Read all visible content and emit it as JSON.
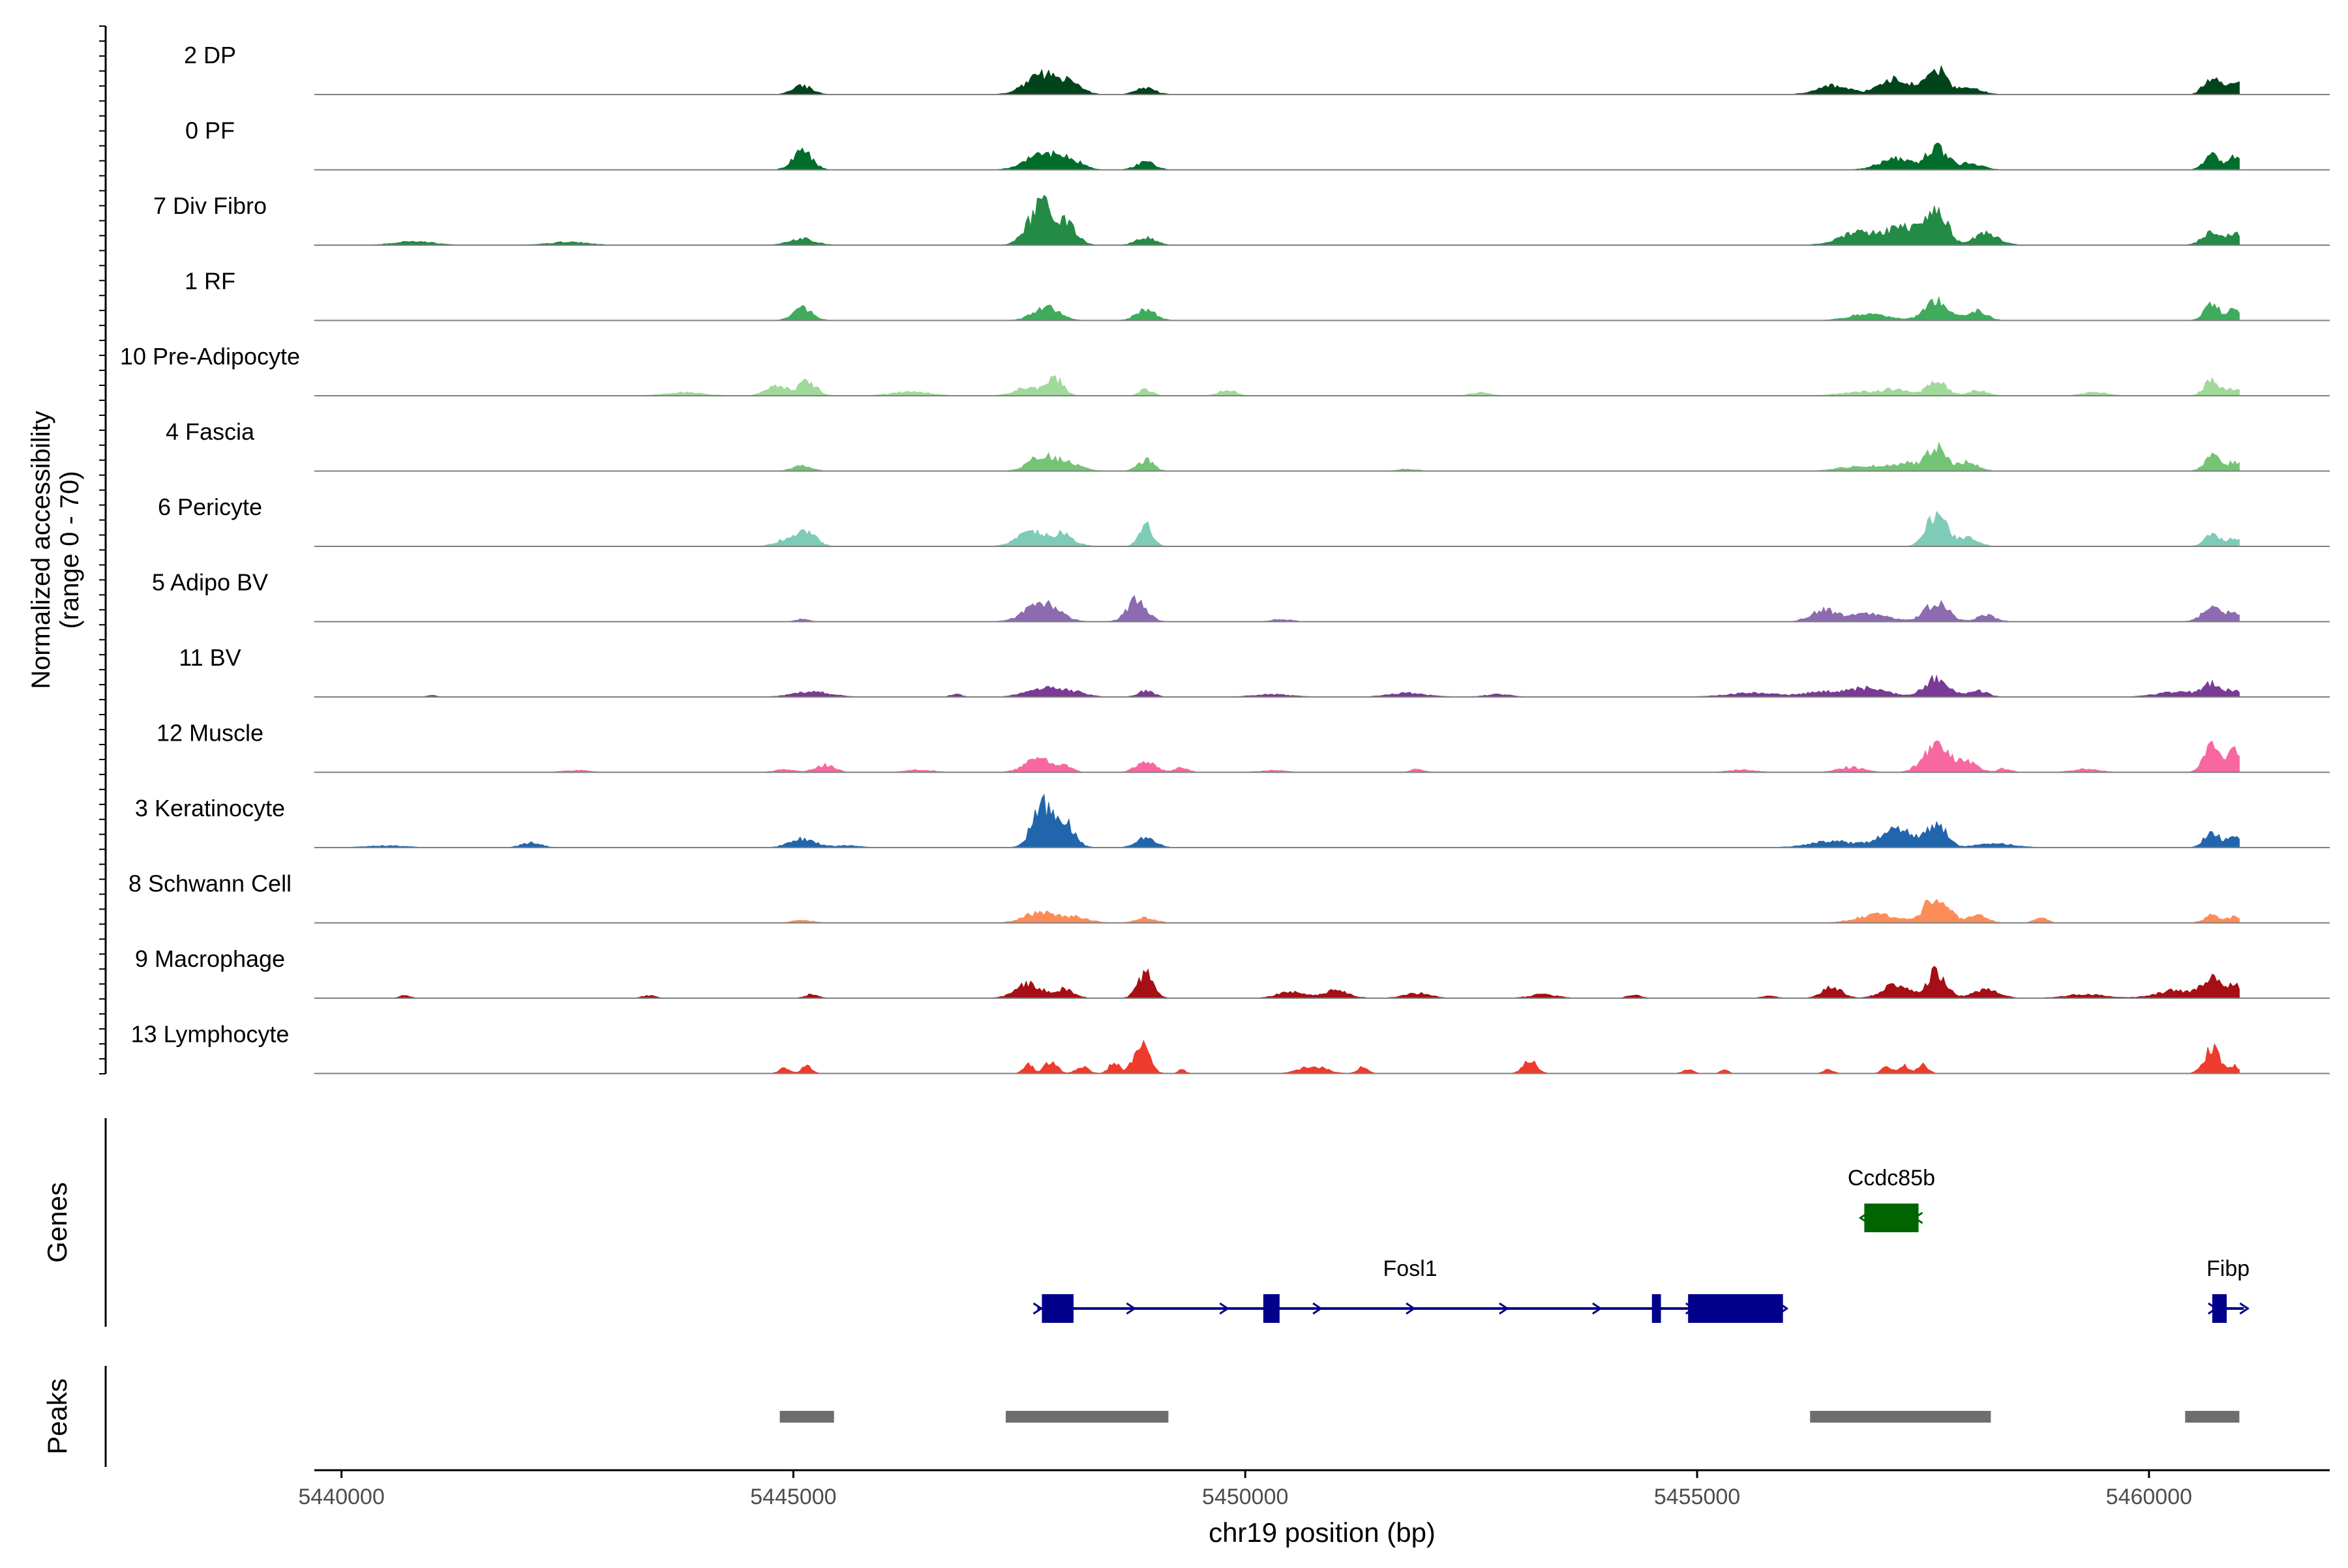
{
  "chart_data": {
    "type": "area",
    "title": "",
    "xlabel": "chr19 position (bp)",
    "ylabel_line1": "Normalized accessibility",
    "ylabel_line2": "(range 0 - 70)",
    "ylim": [
      0,
      70
    ],
    "xlim": [
      5439700,
      5462000
    ],
    "x_ticks": [
      5440000,
      5445000,
      5450000,
      5455000,
      5460000
    ],
    "x_tick_labels": [
      "5440000",
      "5445000",
      "5450000",
      "5455000",
      "5460000"
    ],
    "track_labels": {
      "genes": "Genes",
      "peaks": "Peaks"
    },
    "data_start": 5439700,
    "data_end": 5461000,
    "series": [
      {
        "name": "2 DP",
        "color": "#00441b",
        "peaks": [
          [
            5445100,
            150,
            14
          ],
          [
            5447750,
            250,
            30
          ],
          [
            5448050,
            200,
            15
          ],
          [
            5448900,
            150,
            10
          ],
          [
            5456500,
            250,
            14
          ],
          [
            5457200,
            250,
            24
          ],
          [
            5457650,
            150,
            40
          ],
          [
            5458000,
            200,
            10
          ],
          [
            5460700,
            120,
            30
          ],
          [
            5460950,
            100,
            22
          ]
        ]
      },
      {
        "name": "0 PF",
        "color": "#006d2c",
        "peaks": [
          [
            5445100,
            150,
            30
          ],
          [
            5447750,
            250,
            25
          ],
          [
            5448050,
            200,
            15
          ],
          [
            5448900,
            150,
            12
          ],
          [
            5457200,
            250,
            18
          ],
          [
            5457650,
            150,
            36
          ],
          [
            5458000,
            200,
            10
          ],
          [
            5460700,
            120,
            25
          ],
          [
            5460950,
            100,
            20
          ]
        ]
      },
      {
        "name": "7 Div Fibro",
        "color": "#238b45",
        "peaks": [
          [
            5440800,
            300,
            6
          ],
          [
            5442500,
            300,
            5
          ],
          [
            5445100,
            200,
            10
          ],
          [
            5447750,
            200,
            65
          ],
          [
            5448050,
            150,
            28
          ],
          [
            5448900,
            150,
            12
          ],
          [
            5456800,
            300,
            20
          ],
          [
            5457300,
            250,
            28
          ],
          [
            5457650,
            150,
            65
          ],
          [
            5458200,
            200,
            18
          ],
          [
            5460700,
            150,
            20
          ],
          [
            5460950,
            100,
            18
          ]
        ]
      },
      {
        "name": "1 RF",
        "color": "#41ab5d",
        "peaks": [
          [
            5445100,
            150,
            20
          ],
          [
            5447800,
            200,
            22
          ],
          [
            5448900,
            150,
            18
          ],
          [
            5456900,
            300,
            10
          ],
          [
            5457650,
            180,
            32
          ],
          [
            5458100,
            150,
            15
          ],
          [
            5460700,
            120,
            25
          ],
          [
            5460950,
            100,
            18
          ]
        ]
      },
      {
        "name": "10 Pre-Adipocyte",
        "color": "#a1d99b",
        "peaks": [
          [
            5443800,
            300,
            5
          ],
          [
            5444800,
            150,
            18
          ],
          [
            5445150,
            150,
            22
          ],
          [
            5446300,
            300,
            6
          ],
          [
            5447600,
            200,
            14
          ],
          [
            5447900,
            120,
            26
          ],
          [
            5448900,
            100,
            10
          ],
          [
            5449800,
            120,
            10
          ],
          [
            5452600,
            150,
            5
          ],
          [
            5456800,
            300,
            6
          ],
          [
            5457200,
            200,
            10
          ],
          [
            5457650,
            150,
            22
          ],
          [
            5458100,
            150,
            8
          ],
          [
            5459400,
            200,
            5
          ],
          [
            5460700,
            120,
            25
          ],
          [
            5460950,
            100,
            12
          ]
        ]
      },
      {
        "name": "4 Fascia",
        "color": "#74c476",
        "peaks": [
          [
            5445100,
            150,
            8
          ],
          [
            5447750,
            200,
            24
          ],
          [
            5448050,
            200,
            12
          ],
          [
            5448900,
            120,
            18
          ],
          [
            5451800,
            150,
            3
          ],
          [
            5456800,
            300,
            8
          ],
          [
            5457300,
            250,
            12
          ],
          [
            5457650,
            150,
            36
          ],
          [
            5458000,
            150,
            15
          ],
          [
            5460700,
            120,
            25
          ],
          [
            5460950,
            100,
            15
          ]
        ]
      },
      {
        "name": "6 Pericyte",
        "color": "#7ecbb8",
        "peaks": [
          [
            5444900,
            150,
            10
          ],
          [
            5445150,
            150,
            22
          ],
          [
            5447600,
            200,
            22
          ],
          [
            5447950,
            200,
            20
          ],
          [
            5448900,
            100,
            36
          ],
          [
            5457650,
            150,
            55
          ],
          [
            5458000,
            150,
            15
          ],
          [
            5460700,
            120,
            18
          ],
          [
            5460950,
            100,
            15
          ]
        ]
      },
      {
        "name": "5 Adipo BV",
        "color": "#8c6bb1",
        "peaks": [
          [
            5445100,
            100,
            4
          ],
          [
            5447750,
            250,
            30
          ],
          [
            5448800,
            150,
            34
          ],
          [
            5450400,
            150,
            4
          ],
          [
            5456400,
            200,
            18
          ],
          [
            5456900,
            300,
            12
          ],
          [
            5457650,
            180,
            30
          ],
          [
            5458200,
            150,
            10
          ],
          [
            5460700,
            150,
            22
          ],
          [
            5460950,
            100,
            15
          ]
        ]
      },
      {
        "name": "11 BV",
        "color": "#7a3a96",
        "peaks": [
          [
            5441000,
            80,
            3
          ],
          [
            5445200,
            300,
            8
          ],
          [
            5446800,
            80,
            5
          ],
          [
            5447750,
            250,
            15
          ],
          [
            5448100,
            200,
            8
          ],
          [
            5448900,
            120,
            10
          ],
          [
            5450300,
            300,
            4
          ],
          [
            5451800,
            300,
            6
          ],
          [
            5452800,
            200,
            4
          ],
          [
            5455600,
            400,
            6
          ],
          [
            5456400,
            300,
            8
          ],
          [
            5456900,
            300,
            14
          ],
          [
            5457650,
            180,
            30
          ],
          [
            5458100,
            150,
            10
          ],
          [
            5460300,
            300,
            8
          ],
          [
            5460700,
            150,
            20
          ],
          [
            5460950,
            100,
            10
          ]
        ]
      },
      {
        "name": "12 Muscle",
        "color": "#f768a1",
        "peaks": [
          [
            5442600,
            200,
            3
          ],
          [
            5444900,
            150,
            4
          ],
          [
            5445350,
            150,
            12
          ],
          [
            5446400,
            200,
            4
          ],
          [
            5447700,
            200,
            22
          ],
          [
            5448000,
            120,
            10
          ],
          [
            5448900,
            150,
            18
          ],
          [
            5449300,
            100,
            8
          ],
          [
            5450300,
            200,
            3
          ],
          [
            5451900,
            100,
            5
          ],
          [
            5455500,
            200,
            4
          ],
          [
            5456700,
            200,
            8
          ],
          [
            5457650,
            200,
            42
          ],
          [
            5458000,
            150,
            16
          ],
          [
            5458400,
            100,
            6
          ],
          [
            5459300,
            200,
            5
          ],
          [
            5460700,
            120,
            45
          ],
          [
            5460950,
            100,
            40
          ]
        ]
      },
      {
        "name": "3 Keratinocyte",
        "color": "#2166ac",
        "peaks": [
          [
            5440500,
            300,
            3
          ],
          [
            5442100,
            150,
            8
          ],
          [
            5445100,
            200,
            14
          ],
          [
            5445600,
            200,
            3
          ],
          [
            5447750,
            150,
            68
          ],
          [
            5448000,
            150,
            40
          ],
          [
            5448900,
            150,
            15
          ],
          [
            5456500,
            350,
            10
          ],
          [
            5457200,
            250,
            32
          ],
          [
            5457650,
            150,
            38
          ],
          [
            5458300,
            300,
            6
          ],
          [
            5460700,
            120,
            25
          ],
          [
            5460950,
            100,
            20
          ]
        ]
      },
      {
        "name": "8 Schwann Cell",
        "color": "#fc8d59",
        "peaks": [
          [
            5445100,
            150,
            5
          ],
          [
            5447750,
            250,
            18
          ],
          [
            5448150,
            200,
            8
          ],
          [
            5448900,
            150,
            8
          ],
          [
            5457000,
            300,
            14
          ],
          [
            5457650,
            180,
            45
          ],
          [
            5458100,
            150,
            12
          ],
          [
            5458800,
            100,
            8
          ],
          [
            5460700,
            120,
            12
          ],
          [
            5460950,
            100,
            10
          ]
        ]
      },
      {
        "name": "9 Macrophage",
        "color": "#a50f15",
        "peaks": [
          [
            5440700,
            80,
            4
          ],
          [
            5443400,
            100,
            4
          ],
          [
            5445200,
            100,
            6
          ],
          [
            5447600,
            200,
            24
          ],
          [
            5448000,
            150,
            14
          ],
          [
            5448900,
            120,
            42
          ],
          [
            5450500,
            200,
            10
          ],
          [
            5451000,
            200,
            12
          ],
          [
            5451900,
            200,
            8
          ],
          [
            5453300,
            200,
            6
          ],
          [
            5454300,
            100,
            5
          ],
          [
            5455800,
            100,
            4
          ],
          [
            5456500,
            150,
            18
          ],
          [
            5457200,
            200,
            24
          ],
          [
            5457650,
            150,
            42
          ],
          [
            5458200,
            200,
            14
          ],
          [
            5459300,
            300,
            6
          ],
          [
            5460300,
            300,
            12
          ],
          [
            5460700,
            150,
            32
          ],
          [
            5460950,
            100,
            20
          ]
        ]
      },
      {
        "name": "13 Lymphocyte",
        "color": "#ef3b2c",
        "peaks": [
          [
            5444900,
            80,
            8
          ],
          [
            5445150,
            80,
            14
          ],
          [
            5447600,
            80,
            14
          ],
          [
            5447850,
            100,
            18
          ],
          [
            5448200,
            100,
            10
          ],
          [
            5448550,
            80,
            18
          ],
          [
            5448850,
            120,
            45
          ],
          [
            5449300,
            60,
            6
          ],
          [
            5450750,
            200,
            12
          ],
          [
            5451300,
            80,
            10
          ],
          [
            5453150,
            100,
            24
          ],
          [
            5454900,
            80,
            6
          ],
          [
            5455300,
            60,
            6
          ],
          [
            5456450,
            80,
            6
          ],
          [
            5457100,
            80,
            10
          ],
          [
            5457300,
            80,
            12
          ],
          [
            5457500,
            80,
            14
          ],
          [
            5460700,
            120,
            40
          ],
          [
            5460950,
            60,
            14
          ]
        ]
      }
    ],
    "genes": [
      {
        "name": "Ccdc85b",
        "color": "#006400",
        "strand": "-",
        "row": 1,
        "start": 5456850,
        "end": 5457450,
        "exons": [
          [
            5456850,
            5457450
          ]
        ]
      },
      {
        "name": "Fosl1",
        "color": "#00008b",
        "strand": "+",
        "row": 2,
        "start": 5447700,
        "end": 5455950,
        "exons": [
          [
            5447750,
            5448100
          ],
          [
            5450200,
            5450380
          ],
          [
            5454500,
            5454600
          ],
          [
            5454900,
            5455950
          ]
        ]
      },
      {
        "name": "Fibp",
        "color": "#00008b",
        "strand": "+",
        "row": 2,
        "start": 5460700,
        "end": 5461050,
        "exons": [
          [
            5460700,
            5460860
          ]
        ]
      }
    ],
    "peaks_track": [
      [
        5444850,
        5445450
      ],
      [
        5447350,
        5449150
      ],
      [
        5456250,
        5458250
      ],
      [
        5460400,
        5461000
      ]
    ]
  }
}
